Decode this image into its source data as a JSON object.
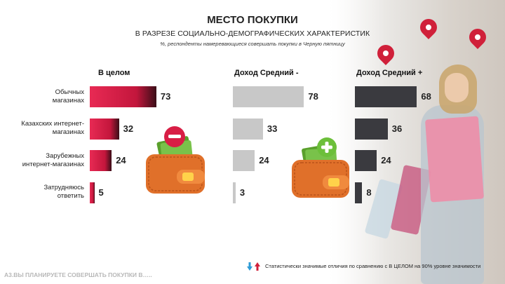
{
  "header": {
    "title": "МЕСТО ПОКУПКИ",
    "subtitle": "В РАЗРЕЗЕ СОЦИАЛЬНО-ДЕМОГРАФИЧЕСКИХ ХАРАКТЕРИСТИК",
    "note": "%,   респонденты намеревающиеся совершать покупки в Черную пятницу"
  },
  "chart_data": {
    "type": "bar",
    "orientation": "horizontal",
    "categories": [
      "Обычных магазинах",
      "Казахских интернет-магазинах",
      "Зарубежных интернет-магазинах",
      "Затрудняюсь ответить"
    ],
    "category_lines": [
      [
        "Обычных",
        "магазинах"
      ],
      [
        "Казахских интернет-",
        "магазинах"
      ],
      [
        "Зарубежных",
        "интернет-магазинах"
      ],
      [
        "Затрудняюсь",
        "ответить"
      ]
    ],
    "series": [
      {
        "name": "В целом",
        "values": [
          73,
          32,
          24,
          5
        ],
        "color": "#d81e45"
      },
      {
        "name": "Доход Средний -",
        "values": [
          78,
          33,
          24,
          3
        ],
        "color": "#c8c8c8"
      },
      {
        "name": "Доход Средний +",
        "values": [
          68,
          36,
          24,
          8
        ],
        "color": "#3a3a3f"
      }
    ],
    "xlim": [
      0,
      100
    ],
    "grid": false
  },
  "legend": {
    "text": "Статистически  значимые  отличия  по  сравнению  с  В ЦЕЛОМ  на  90%  уровне  значимости",
    "up_color": "#d0203a",
    "down_color": "#2e9bd6"
  },
  "footer": {
    "question": "А3.ВЫ ПЛАНИРУЕТЕ СОВЕРШАТЬ ПОКУПКИ В….."
  },
  "icons": {
    "wallet_minus": "wallet-minus-icon",
    "wallet_plus": "wallet-plus-icon",
    "minus_color": "#d81e45",
    "plus_color": "#6cbf3a"
  }
}
